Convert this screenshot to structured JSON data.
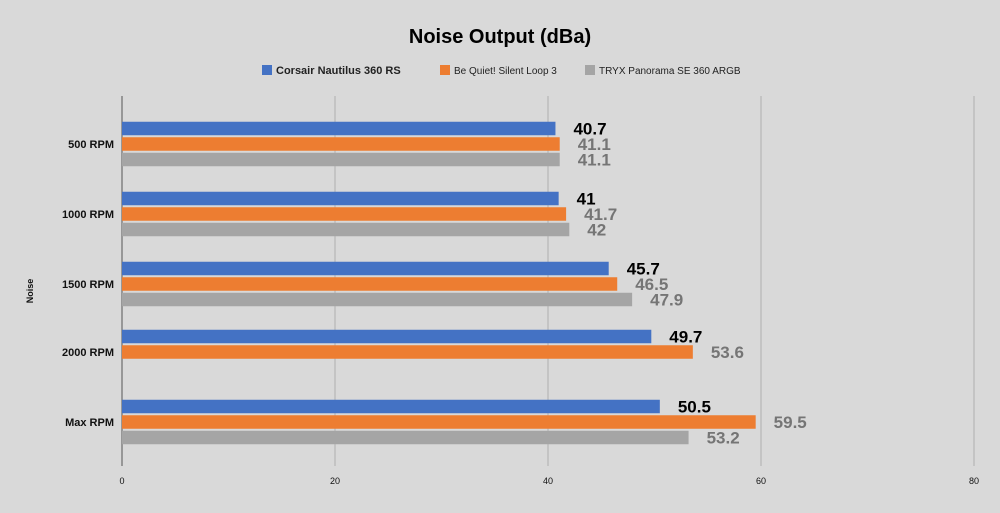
{
  "chart_data": {
    "type": "bar",
    "orientation": "horizontal",
    "title": "Noise Output (dBa)",
    "xlabel": "",
    "ylabel": "Noise",
    "categories": [
      "500 RPM",
      "1000 RPM",
      "1500 RPM",
      "2000 RPM",
      "Max RPM"
    ],
    "series": [
      {
        "name": "Corsair Nautilus 360 RS",
        "color": "#4472c4",
        "label_color": "#000000",
        "values": [
          40.7,
          41,
          45.7,
          49.7,
          50.5
        ]
      },
      {
        "name": "Be Quiet! Silent Loop 3",
        "color": "#ed7d31",
        "label_color": "#757575",
        "values": [
          41.1,
          41.7,
          46.5,
          53.6,
          59.5
        ]
      },
      {
        "name": "TRYX Panorama SE 360 ARGB",
        "color": "#a5a5a5",
        "label_color": "#757575",
        "values": [
          41.1,
          42,
          47.9,
          null,
          53.2
        ]
      }
    ],
    "xlim": [
      0,
      80
    ],
    "xticks": [
      0,
      20,
      40,
      60,
      80
    ],
    "grid": true,
    "legend_position": "top"
  }
}
